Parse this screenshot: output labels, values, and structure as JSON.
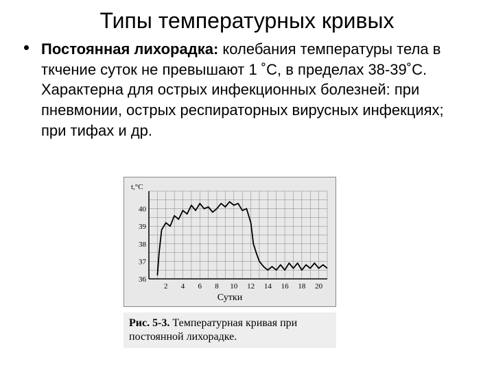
{
  "title": "Типы температурных кривых",
  "paragraph": {
    "lead_bold": "Постоянная лихорадка:",
    "rest": " колебания температуры тела в ткчение суток не превышают 1 ˚С, в  пределах 38-39˚С. Характерна для острых инфекционных болезней: при пневмонии, острых респираторных вирусных инфекциях; при тифах и др."
  },
  "chart": {
    "type": "line",
    "y_axis_label": "t,°C",
    "x_axis_label": "Сутки",
    "ylim": [
      36,
      41
    ],
    "xlim": [
      0,
      21
    ],
    "ytick_labels": [
      "36",
      "37",
      "38",
      "39",
      "40"
    ],
    "ytick_values": [
      36,
      37,
      38,
      39,
      40
    ],
    "xtick_labels": [
      "2",
      "4",
      "6",
      "8",
      "10",
      "12",
      "14",
      "16",
      "18",
      "20"
    ],
    "xtick_values": [
      2,
      4,
      6,
      8,
      10,
      12,
      14,
      16,
      18,
      20
    ],
    "grid_minor_step_x": 1,
    "grid_minor_step_y": 0.5,
    "background_color": "#e8e8e8",
    "grid_color": "#808080",
    "axis_color": "#000000",
    "line_color": "#000000",
    "line_width": 1.8,
    "label_fontsize": 12,
    "tick_fontsize": 11,
    "data": [
      {
        "x": 1.0,
        "y": 36.2
      },
      {
        "x": 1.2,
        "y": 37.5
      },
      {
        "x": 1.5,
        "y": 38.8
      },
      {
        "x": 2.0,
        "y": 39.2
      },
      {
        "x": 2.5,
        "y": 39.0
      },
      {
        "x": 3.0,
        "y": 39.6
      },
      {
        "x": 3.5,
        "y": 39.4
      },
      {
        "x": 4.0,
        "y": 39.9
      },
      {
        "x": 4.5,
        "y": 39.7
      },
      {
        "x": 5.0,
        "y": 40.2
      },
      {
        "x": 5.5,
        "y": 39.9
      },
      {
        "x": 6.0,
        "y": 40.3
      },
      {
        "x": 6.5,
        "y": 40.0
      },
      {
        "x": 7.0,
        "y": 40.1
      },
      {
        "x": 7.5,
        "y": 39.8
      },
      {
        "x": 8.0,
        "y": 40.0
      },
      {
        "x": 8.5,
        "y": 40.3
      },
      {
        "x": 9.0,
        "y": 40.1
      },
      {
        "x": 9.5,
        "y": 40.4
      },
      {
        "x": 10.0,
        "y": 40.2
      },
      {
        "x": 10.5,
        "y": 40.3
      },
      {
        "x": 11.0,
        "y": 39.9
      },
      {
        "x": 11.5,
        "y": 40.0
      },
      {
        "x": 12.0,
        "y": 39.2
      },
      {
        "x": 12.3,
        "y": 38.0
      },
      {
        "x": 12.7,
        "y": 37.4
      },
      {
        "x": 13.0,
        "y": 37.0
      },
      {
        "x": 13.5,
        "y": 36.7
      },
      {
        "x": 14.0,
        "y": 36.5
      },
      {
        "x": 14.5,
        "y": 36.7
      },
      {
        "x": 15.0,
        "y": 36.5
      },
      {
        "x": 15.5,
        "y": 36.8
      },
      {
        "x": 16.0,
        "y": 36.5
      },
      {
        "x": 16.5,
        "y": 36.9
      },
      {
        "x": 17.0,
        "y": 36.6
      },
      {
        "x": 17.5,
        "y": 36.9
      },
      {
        "x": 18.0,
        "y": 36.5
      },
      {
        "x": 18.5,
        "y": 36.8
      },
      {
        "x": 19.0,
        "y": 36.6
      },
      {
        "x": 19.5,
        "y": 36.9
      },
      {
        "x": 20.0,
        "y": 36.6
      },
      {
        "x": 20.5,
        "y": 36.8
      },
      {
        "x": 21.0,
        "y": 36.6
      }
    ]
  },
  "caption": {
    "fig_label": "Рис. 5-3.",
    "text": " Температурная кривая при постоянной лихорадке."
  }
}
